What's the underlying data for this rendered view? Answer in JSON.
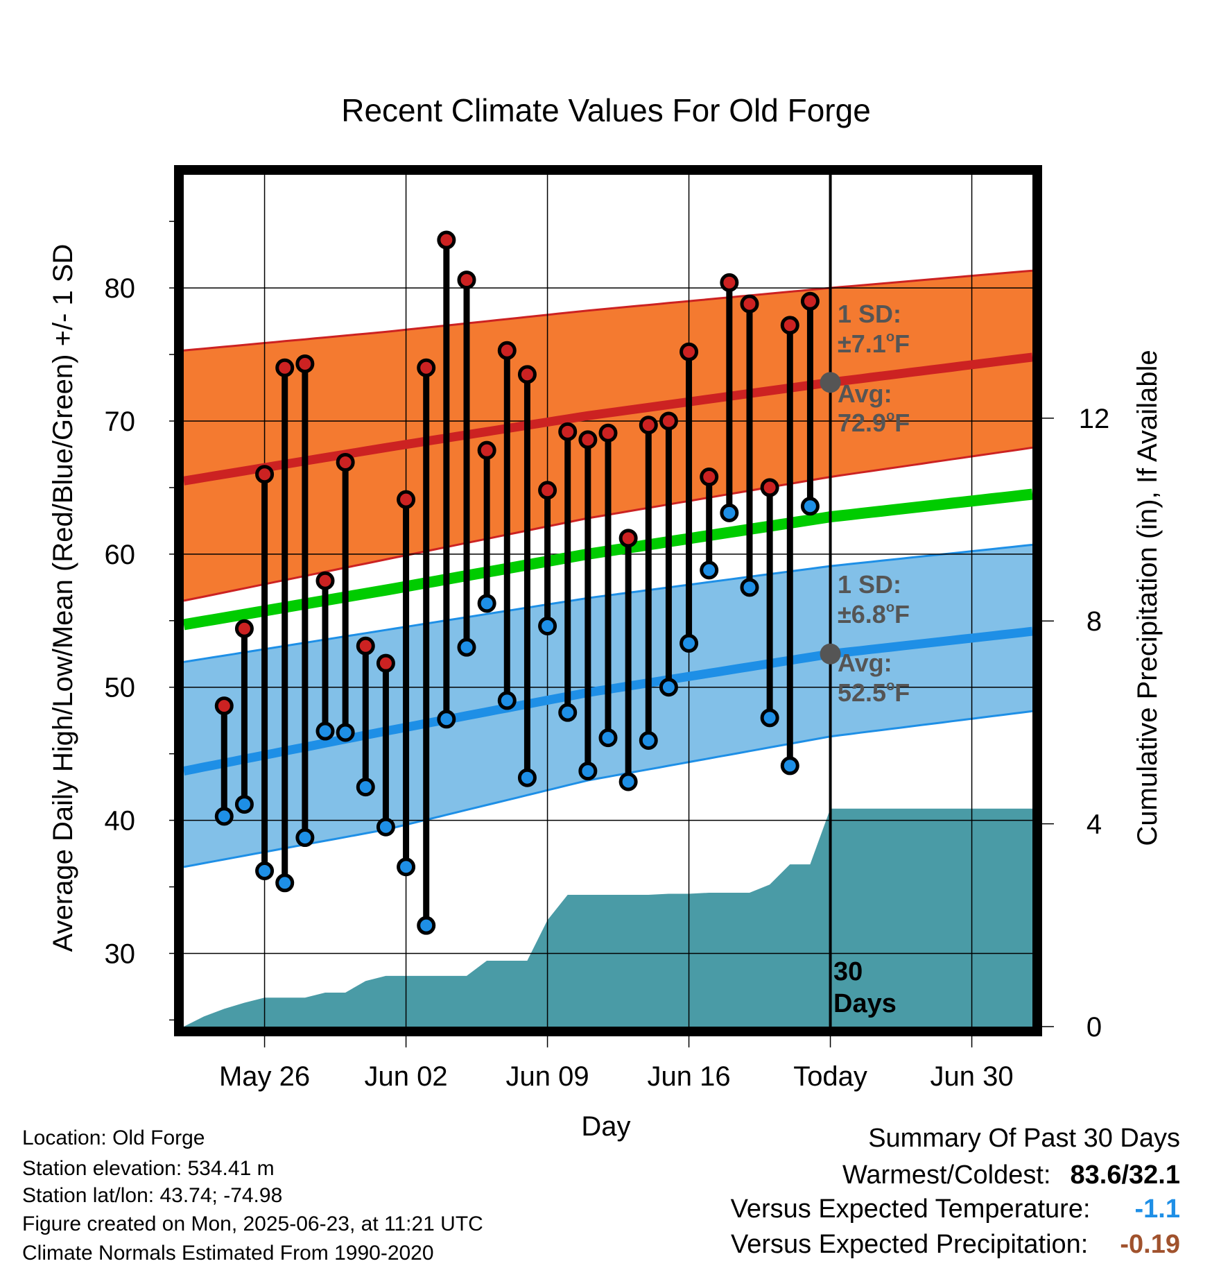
{
  "chart_data": {
    "type": "line",
    "title": "Recent Climate Values For Old Forge",
    "xlabel": "Day",
    "ylabel": "Average Daily High/Low/Mean (Red/Blue/Green) +/- 1 SD",
    "y2label": "Cumulative Precipitation (in), If Available",
    "ylim": [
      24.5,
      88.5
    ],
    "y_ticks": [
      30,
      40,
      50,
      60,
      70,
      80
    ],
    "y2lim": [
      0,
      16.8
    ],
    "y2_ticks": [
      0,
      4,
      8,
      12
    ],
    "xlim": [
      "2025-05-22",
      "2025-07-03"
    ],
    "x_ticks": [
      {
        "date": "2025-05-26",
        "label": "May 26"
      },
      {
        "date": "2025-06-02",
        "label": "Jun 02"
      },
      {
        "date": "2025-06-09",
        "label": "Jun 09"
      },
      {
        "date": "2025-06-16",
        "label": "Jun 16"
      },
      {
        "date": "2025-06-23",
        "label": "Today"
      },
      {
        "date": "2025-06-30",
        "label": "Jun 30"
      }
    ],
    "grid": true,
    "today": "2025-06-23",
    "period_label": [
      "30",
      "Days"
    ],
    "colors": {
      "high": "#cc2222",
      "low": "#1e8fe6",
      "mean": "#00cc00",
      "high_band": "#f47a30",
      "low_band": "#82c0e8",
      "precip": "#4a9ba6",
      "avg_marker": "#555555"
    },
    "normals": {
      "dates": [
        "2025-05-22",
        "2025-06-01",
        "2025-06-11",
        "2025-06-23",
        "2025-07-03"
      ],
      "high_mean": [
        65.5,
        68.0,
        70.4,
        72.9,
        74.8
      ],
      "high_upper": [
        75.3,
        76.7,
        78.3,
        80.0,
        81.3
      ],
      "high_lower": [
        56.5,
        59.6,
        62.7,
        65.8,
        68.0
      ],
      "mean": [
        54.7,
        57.3,
        60.0,
        62.8,
        64.5
      ],
      "low_mean": [
        43.7,
        46.7,
        49.6,
        52.5,
        54.2
      ],
      "low_upper": [
        51.9,
        54.3,
        56.7,
        59.1,
        60.7
      ],
      "low_lower": [
        36.5,
        39.3,
        43.0,
        46.3,
        48.2
      ]
    },
    "series": [
      {
        "name": "High",
        "x": [
          "2025-05-24",
          "2025-05-25",
          "2025-05-26",
          "2025-05-27",
          "2025-05-28",
          "2025-05-29",
          "2025-05-30",
          "2025-05-31",
          "2025-06-01",
          "2025-06-02",
          "2025-06-03",
          "2025-06-04",
          "2025-06-05",
          "2025-06-06",
          "2025-06-07",
          "2025-06-08",
          "2025-06-09",
          "2025-06-10",
          "2025-06-11",
          "2025-06-12",
          "2025-06-13",
          "2025-06-14",
          "2025-06-15",
          "2025-06-16",
          "2025-06-17",
          "2025-06-18",
          "2025-06-19",
          "2025-06-20",
          "2025-06-21",
          "2025-06-22"
        ],
        "values": [
          48.6,
          54.4,
          66.0,
          74.0,
          74.3,
          58.0,
          66.9,
          53.1,
          51.8,
          64.1,
          74.0,
          83.6,
          80.6,
          67.8,
          75.3,
          73.5,
          64.8,
          69.2,
          68.6,
          69.1,
          61.2,
          69.7,
          70.0,
          75.2,
          65.8,
          80.4,
          78.8,
          65.0,
          77.2,
          79.0
        ]
      },
      {
        "name": "Low",
        "x": [
          "2025-05-24",
          "2025-05-25",
          "2025-05-26",
          "2025-05-27",
          "2025-05-28",
          "2025-05-29",
          "2025-05-30",
          "2025-05-31",
          "2025-06-01",
          "2025-06-02",
          "2025-06-03",
          "2025-06-04",
          "2025-06-05",
          "2025-06-06",
          "2025-06-07",
          "2025-06-08",
          "2025-06-09",
          "2025-06-10",
          "2025-06-11",
          "2025-06-12",
          "2025-06-13",
          "2025-06-14",
          "2025-06-15",
          "2025-06-16",
          "2025-06-17",
          "2025-06-18",
          "2025-06-19",
          "2025-06-20",
          "2025-06-21",
          "2025-06-22"
        ],
        "values": [
          40.3,
          41.2,
          36.2,
          35.3,
          38.7,
          46.7,
          46.6,
          42.5,
          39.5,
          36.5,
          32.1,
          47.6,
          53.0,
          56.3,
          49.0,
          43.2,
          54.6,
          48.1,
          43.7,
          46.2,
          42.9,
          46.0,
          50.0,
          53.3,
          58.8,
          63.1,
          57.5,
          47.7,
          44.1,
          63.6
        ]
      },
      {
        "name": "Cumulative Precipitation",
        "x": [
          "2025-05-22",
          "2025-05-23",
          "2025-05-24",
          "2025-05-25",
          "2025-05-26",
          "2025-05-27",
          "2025-05-28",
          "2025-05-29",
          "2025-05-30",
          "2025-05-31",
          "2025-06-01",
          "2025-06-02",
          "2025-06-03",
          "2025-06-04",
          "2025-06-05",
          "2025-06-06",
          "2025-06-07",
          "2025-06-08",
          "2025-06-09",
          "2025-06-10",
          "2025-06-11",
          "2025-06-12",
          "2025-06-13",
          "2025-06-14",
          "2025-06-15",
          "2025-06-16",
          "2025-06-17",
          "2025-06-18",
          "2025-06-19",
          "2025-06-20",
          "2025-06-21",
          "2025-06-22",
          "2025-06-23",
          "2025-07-03"
        ],
        "values": [
          0.0,
          0.2,
          0.35,
          0.47,
          0.57,
          0.57,
          0.57,
          0.67,
          0.67,
          0.9,
          1.0,
          1.0,
          1.0,
          1.0,
          1.0,
          1.3,
          1.3,
          1.3,
          2.1,
          2.6,
          2.6,
          2.6,
          2.6,
          2.6,
          2.62,
          2.62,
          2.64,
          2.64,
          2.64,
          2.8,
          3.2,
          3.2,
          4.3,
          4.3
        ]
      }
    ],
    "annotations": {
      "high_sd_title": "1 SD:",
      "high_sd_value": "±7.1",
      "high_avg_title": "Avg:",
      "high_avg_value": "72.9",
      "low_sd_title": "1 SD:",
      "low_sd_value": "±6.8",
      "low_avg_title": "Avg:",
      "low_avg_value": "52.5",
      "deg_symbol": "o",
      "unit_letter": "F"
    }
  },
  "info": {
    "location": "Location: Old Forge",
    "elevation": "Station elevation: 534.41 m",
    "latlon": "Station lat/lon: 43.74; -74.98",
    "created": "Figure created on Mon, 2025-06-23, at 11:21 UTC",
    "normals": "Climate Normals Estimated From 1990-2020"
  },
  "summary": {
    "title": "Summary Of Past 30 Days",
    "warm_cold_label": "Warmest/Coldest:",
    "warm_cold_value": "83.6/32.1",
    "temp_label": "Versus Expected Temperature:",
    "temp_value": "-1.1",
    "temp_color": "#1e8fe6",
    "precip_label": "Versus Expected Precipitation:",
    "precip_value": "-0.19",
    "precip_color": "#a0522d"
  }
}
